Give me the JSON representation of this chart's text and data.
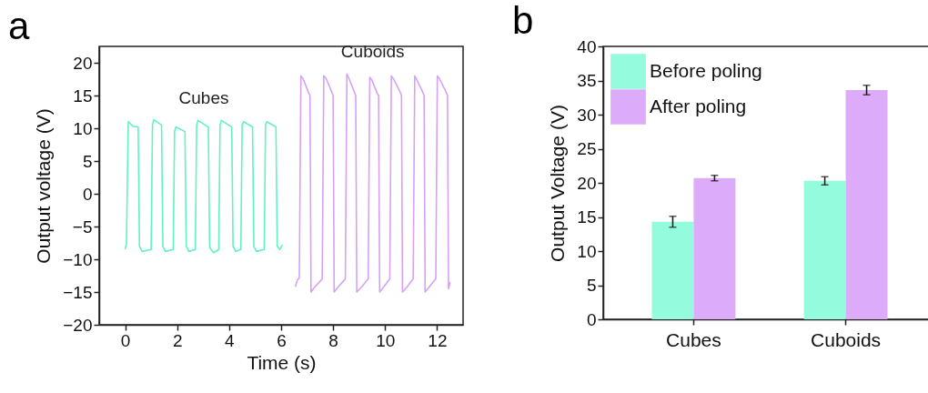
{
  "chart_data": [
    {
      "type": "line",
      "title": "a",
      "xlabel": "Time (s)",
      "ylabel": "Output voltage (V)",
      "xlim": [
        -1,
        13
      ],
      "ylim": [
        -20,
        22.5
      ],
      "xticks": [
        0,
        2,
        4,
        6,
        8,
        10,
        12
      ],
      "yticks": [
        -20,
        -15,
        -10,
        -5,
        0,
        5,
        10,
        15,
        20
      ],
      "grid": false,
      "series": [
        {
          "name": "Cubes",
          "color": "#62f2c4",
          "x": [
            0.0,
            0.05,
            0.12,
            0.3,
            0.5,
            0.55,
            0.65,
            1.0,
            1.05,
            1.1,
            1.4,
            1.45,
            1.55,
            1.85,
            1.9,
            1.95,
            2.3,
            2.35,
            2.45,
            2.7,
            2.75,
            2.8,
            3.2,
            3.25,
            3.4,
            3.6,
            3.65,
            3.7,
            4.1,
            4.15,
            4.25,
            4.45,
            4.5,
            4.55,
            4.9,
            4.95,
            5.05,
            5.35,
            5.4,
            5.45,
            5.8,
            5.85,
            5.95,
            6.05
          ],
          "values": [
            -8.5,
            -7.5,
            11,
            10.3,
            10.2,
            -8,
            -8.8,
            -8.5,
            10.5,
            11.3,
            10.5,
            -8,
            -8.8,
            -8.5,
            9.5,
            10.2,
            9.5,
            -8,
            -8.8,
            -8.5,
            10.5,
            11.2,
            10.2,
            -8.2,
            -9,
            -8.5,
            10.5,
            11.2,
            10.2,
            -8,
            -8.8,
            -8.5,
            10.5,
            11,
            10.2,
            -8,
            -8.8,
            -8.5,
            10.5,
            11,
            10.2,
            -8,
            -8.5,
            -7.8
          ]
        },
        {
          "name": "Cuboids",
          "color": "#d5a2f5",
          "x": [
            6.55,
            6.62,
            6.7,
            6.76,
            6.85,
            7.05,
            7.11,
            7.15,
            7.3,
            7.58,
            7.64,
            7.73,
            7.95,
            8.0,
            8.04,
            8.2,
            8.47,
            8.53,
            8.62,
            8.82,
            8.87,
            8.91,
            9.1,
            9.35,
            9.41,
            9.5,
            9.7,
            9.75,
            9.79,
            9.95,
            10.18,
            10.24,
            10.33,
            10.58,
            10.63,
            10.67,
            10.85,
            11.08,
            11.14,
            11.23,
            11.45,
            11.5,
            11.54,
            11.7,
            11.95,
            12.01,
            12.1,
            12.35,
            12.4,
            12.44,
            12.5
          ],
          "values": [
            -14.2,
            -13.2,
            -12.8,
            18,
            17.5,
            15.5,
            15,
            -15,
            -14.2,
            -13,
            18,
            17.6,
            15.5,
            15,
            -15,
            -14.2,
            -13,
            18.3,
            17.5,
            15.5,
            15,
            -15,
            -14.2,
            -13,
            17.8,
            17.3,
            15.3,
            15,
            -15,
            -14.2,
            -13,
            18,
            17.5,
            15.5,
            15,
            -15,
            -14.2,
            -13,
            18,
            17.3,
            15.5,
            15,
            -15,
            -14.2,
            -13,
            18,
            17.5,
            15.5,
            15,
            -14.5,
            -13.5
          ]
        }
      ]
    },
    {
      "type": "bar",
      "title": "b",
      "ylabel": "Output Voltage (V)",
      "categories": [
        "Cubes",
        "Cuboids"
      ],
      "ylim": [
        0,
        40
      ],
      "yticks": [
        0,
        5,
        10,
        15,
        20,
        25,
        30,
        35,
        40
      ],
      "grid": false,
      "legend": "top left",
      "series": [
        {
          "name": "Before poling",
          "color": "#94fbdc",
          "values": [
            14.3,
            20.3
          ],
          "errors": [
            0.8,
            0.6
          ]
        },
        {
          "name": "After poling",
          "color": "#dcabfa",
          "values": [
            20.7,
            33.6
          ],
          "errors": [
            0.4,
            0.7
          ]
        }
      ]
    }
  ]
}
